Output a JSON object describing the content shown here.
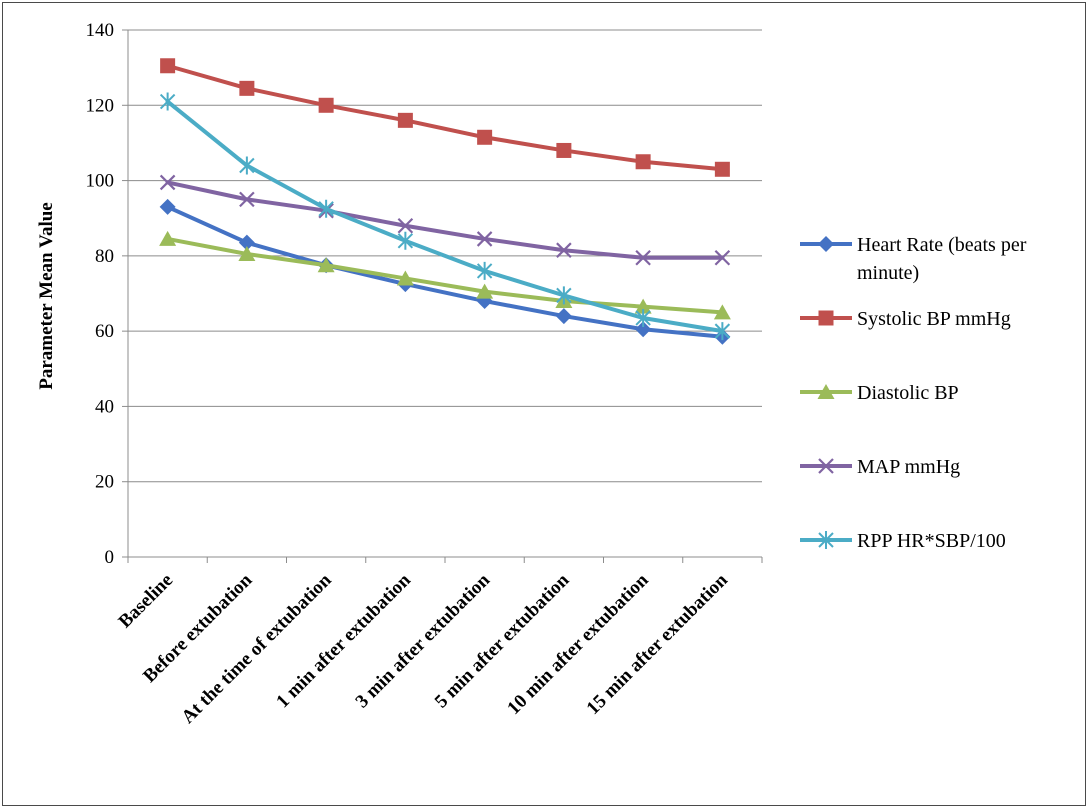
{
  "chart_data": {
    "type": "line",
    "title": "",
    "xlabel": "",
    "ylabel": "Parameter Mean Value",
    "ylim": [
      0,
      140
    ],
    "yticks": [
      0,
      20,
      40,
      60,
      80,
      100,
      120,
      140
    ],
    "grid": true,
    "legend_position": "right",
    "categories": [
      "Baseline",
      "Before extubation",
      "At the time of extubation",
      "1 min after extubation",
      "3 min after extubation",
      "5 min after extubation",
      "10 min after extubation",
      "15 min after extubation"
    ],
    "series": [
      {
        "name": "Heart Rate (beats per minute)",
        "legend_lines": [
          "Heart Rate (beats per",
          "minute)"
        ],
        "color": "#4472c4",
        "marker": "diamond",
        "values": [
          93,
          83.5,
          77.5,
          72.5,
          68,
          64,
          60.5,
          58.5
        ]
      },
      {
        "name": "Systolic BP mmHg",
        "legend_lines": [
          "Systolic BP mmHg"
        ],
        "color": "#c0504d",
        "marker": "square",
        "values": [
          130.5,
          124.5,
          120,
          116,
          111.5,
          108,
          105,
          103
        ]
      },
      {
        "name": "Diastolic BP",
        "legend_lines": [
          "Diastolic BP"
        ],
        "color": "#9bbb59",
        "marker": "triangle",
        "values": [
          84.5,
          80.5,
          77.5,
          74,
          70.5,
          68,
          66.5,
          65
        ]
      },
      {
        "name": "MAP mmHg",
        "legend_lines": [
          "MAP mmHg"
        ],
        "color": "#8064a2",
        "marker": "x",
        "values": [
          99.5,
          95,
          92,
          88,
          84.5,
          81.5,
          79.5,
          79.5
        ]
      },
      {
        "name": "RPP HR*SBP/100",
        "legend_lines": [
          "RPP HR*SBP/100"
        ],
        "color": "#4bacc6",
        "marker": "star",
        "values": [
          121,
          104,
          92.5,
          84,
          76,
          69.5,
          63.5,
          60
        ]
      }
    ]
  }
}
